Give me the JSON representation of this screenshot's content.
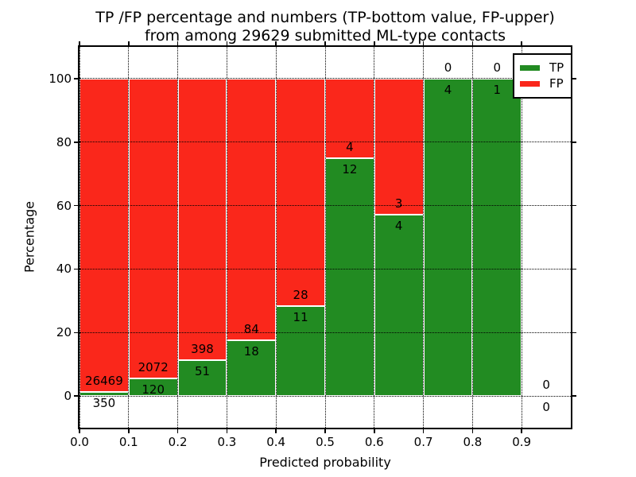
{
  "figure": {
    "title_line1": "TP /FP percentage and numbers (TP-bottom value, FP-upper)",
    "title_line2": "from among 29629 submitted ML-type contacts"
  },
  "chart_data": {
    "type": "bar",
    "stacked": true,
    "orientation": "vertical",
    "title": "TP /FP percentage and numbers (TP-bottom value, FP-upper) from among 29629 submitted ML-type contacts",
    "xlabel": "Predicted probability",
    "ylabel": "Percentage",
    "total_contacts": 29629,
    "xlim": [
      0.0,
      1.0
    ],
    "ylim": [
      -10,
      110
    ],
    "x_tick_values": [
      0.0,
      0.1,
      0.2,
      0.3,
      0.4,
      0.5,
      0.6,
      0.7,
      0.8,
      0.9
    ],
    "x_tick_labels": [
      "0.0",
      "0.1",
      "0.2",
      "0.3",
      "0.4",
      "0.5",
      "0.6",
      "0.7",
      "0.8",
      "0.9"
    ],
    "y_tick_values": [
      0,
      20,
      40,
      60,
      80,
      100
    ],
    "y_tick_labels": [
      "0",
      "20",
      "40",
      "60",
      "80",
      "100"
    ],
    "grid": {
      "style": "dotted",
      "color": "#000000"
    },
    "colors": {
      "tp": "#228b22",
      "fp": "#fa271b"
    },
    "legend": {
      "position": "upper-right",
      "entries": [
        {
          "label": "TP",
          "color": "#228b22"
        },
        {
          "label": "FP",
          "color": "#fa271b"
        }
      ]
    },
    "bins": [
      {
        "x_start": 0.0,
        "x_end": 0.1,
        "tp": 350,
        "fp": 26469
      },
      {
        "x_start": 0.1,
        "x_end": 0.2,
        "tp": 120,
        "fp": 2072
      },
      {
        "x_start": 0.2,
        "x_end": 0.3,
        "tp": 51,
        "fp": 398
      },
      {
        "x_start": 0.3,
        "x_end": 0.4,
        "tp": 18,
        "fp": 84
      },
      {
        "x_start": 0.4,
        "x_end": 0.5,
        "tp": 11,
        "fp": 28
      },
      {
        "x_start": 0.5,
        "x_end": 0.6,
        "tp": 12,
        "fp": 4
      },
      {
        "x_start": 0.6,
        "x_end": 0.7,
        "tp": 4,
        "fp": 3
      },
      {
        "x_start": 0.7,
        "x_end": 0.8,
        "tp": 4,
        "fp": 0
      },
      {
        "x_start": 0.8,
        "x_end": 0.9,
        "tp": 1,
        "fp": 0
      },
      {
        "x_start": 0.9,
        "x_end": 1.0,
        "tp": 0,
        "fp": 0
      }
    ]
  }
}
